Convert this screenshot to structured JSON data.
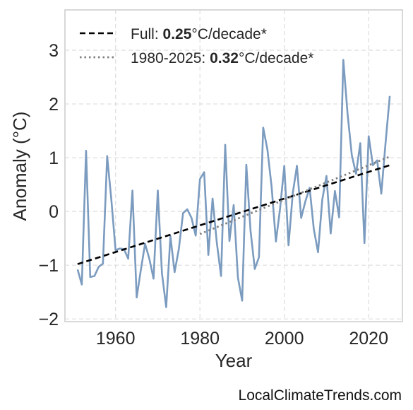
{
  "chart_data": {
    "type": "line",
    "xlabel": "Year",
    "ylabel": "Anomaly (°C)",
    "xlim": [
      1948,
      2028
    ],
    "ylim": [
      -2.05,
      3.75
    ],
    "xticks": [
      1960,
      1980,
      2000,
      2020
    ],
    "yticks": [
      -2,
      -1,
      0,
      1,
      2,
      3
    ],
    "xtick_labels": [
      "1960",
      "1980",
      "2000",
      "2020"
    ],
    "ytick_labels": [
      "−2",
      "−1",
      "0",
      "1",
      "2",
      "3"
    ],
    "grid": true,
    "legend_position": "top-left",
    "series": [
      {
        "style": "solid",
        "color": "#7b9bbf",
        "x": [
          1951,
          1952,
          1953,
          1954,
          1955,
          1956,
          1957,
          1958,
          1959,
          1960,
          1961,
          1962,
          1963,
          1964,
          1965,
          1966,
          1967,
          1968,
          1969,
          1970,
          1971,
          1972,
          1973,
          1974,
          1975,
          1976,
          1977,
          1978,
          1979,
          1980,
          1981,
          1982,
          1983,
          1984,
          1985,
          1986,
          1987,
          1988,
          1989,
          1990,
          1991,
          1992,
          1993,
          1994,
          1995,
          1996,
          1997,
          1998,
          1999,
          2000,
          2001,
          2002,
          2003,
          2004,
          2005,
          2006,
          2007,
          2008,
          2009,
          2010,
          2011,
          2012,
          2013,
          2014,
          2015,
          2016,
          2017,
          2018,
          2019,
          2020,
          2021,
          2022,
          2023,
          2024,
          2025
        ],
        "y": [
          -1.08,
          -1.36,
          1.13,
          -1.22,
          -1.2,
          -1.03,
          -0.97,
          1.03,
          0.22,
          -0.72,
          -0.69,
          -0.7,
          -0.88,
          0.39,
          -1.6,
          -1.08,
          -0.6,
          -0.88,
          -1.25,
          0.39,
          -1.15,
          -1.78,
          -0.46,
          -1.13,
          -0.7,
          -0.03,
          0.04,
          -0.12,
          -0.45,
          0.6,
          0.73,
          -0.81,
          0.24,
          -0.58,
          -1.2,
          1.24,
          -0.55,
          0.12,
          -1.23,
          -1.66,
          0.87,
          -0.36,
          -1.07,
          -0.85,
          1.56,
          1.15,
          0.45,
          -0.56,
          0.05,
          0.85,
          -0.63,
          0.34,
          0.85,
          -0.12,
          0.19,
          0.44,
          -0.33,
          -0.76,
          0.22,
          0.66,
          -0.41,
          0.38,
          -0.11,
          2.82,
          1.82,
          1.05,
          0.7,
          1.27,
          -0.59,
          1.4,
          0.86,
          0.95,
          0.33,
          1.27,
          2.15
        ]
      },
      {
        "name": "Full:",
        "rate": "0.25",
        "unit": "°C/decade*",
        "style": "dashed",
        "color": "#000000",
        "x": [
          1951,
          2025
        ],
        "y": [
          -0.98,
          0.86
        ]
      },
      {
        "name": "1980-2025:",
        "rate": "0.32",
        "unit": "°C/decade*",
        "style": "dotted",
        "color": "#808080",
        "x": [
          1980,
          2025
        ],
        "y": [
          -0.42,
          1.02
        ]
      }
    ]
  },
  "source_text": "LocalClimateTrends.com"
}
